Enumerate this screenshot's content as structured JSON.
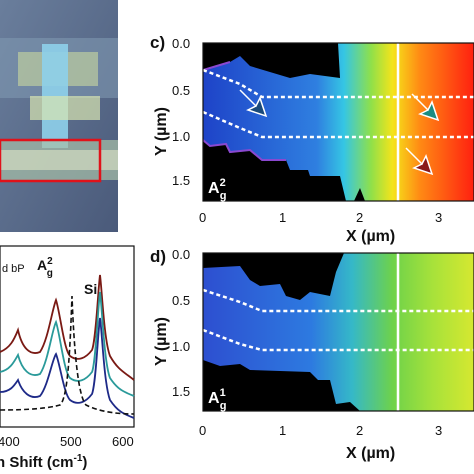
{
  "colors": {
    "black": "#000000",
    "cold_blue": "#2a4fd6",
    "cyan": "#3fd3e6",
    "green": "#7edc3a",
    "yellow": "#f3e81a",
    "red": "#ff2a10",
    "line_dark_red": "#7a1a14",
    "line_teal": "#2a9a9a",
    "line_navy": "#1e2a88",
    "arrow_navy": "#1a4a7a",
    "arrow_teal": "#1a8c82",
    "arrow_brown": "#8a1a1a",
    "optical_box": "#e0121a"
  },
  "panel_c": {
    "label": "c)",
    "ylabel_html": "Y (µm)",
    "xlabel": "X (µm)",
    "mode_label_base": "A",
    "mode_label_sup": "2",
    "mode_label_sub": "g",
    "y_ticks": [
      "0.0",
      "0.5",
      "1.0",
      "1.5"
    ],
    "x_ticks": [
      "0",
      "1",
      "2",
      "3"
    ]
  },
  "panel_d": {
    "label": "d)",
    "ylabel_html": "Y (µm)",
    "xlabel": "X (µm)",
    "mode_label_base": "A",
    "mode_label_sup": "1",
    "mode_label_sub": "g",
    "y_ticks": [
      "0.0",
      "0.5",
      "1.0",
      "1.5"
    ],
    "x_ticks": [
      "0",
      "1",
      "2",
      "3"
    ]
  },
  "spectrum_panel": {
    "legend_fragment": "d bP",
    "peak_label_base": "A",
    "peak_label_sup": "2",
    "peak_label_sub": "g",
    "si_label": "Si",
    "x_ticks": [
      "400",
      "500",
      "600"
    ],
    "xlabel": "n Shift (cm",
    "xlabel_sup": "-1",
    "xlabel_end": ")"
  }
}
